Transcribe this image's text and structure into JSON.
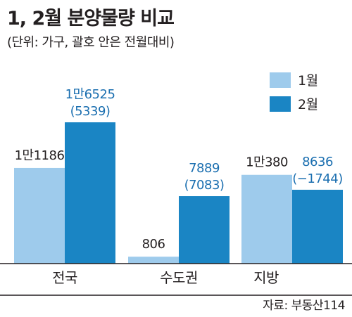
{
  "title": "1, 2월 분양물량 비교",
  "subtitle": "(단위: 가구, 괄호 안은 전월대비)",
  "source": "자료: 부동산114",
  "chart_data": {
    "type": "bar",
    "categories": [
      "전국",
      "수도권",
      "지방"
    ],
    "series": [
      {
        "name": "1월",
        "values": [
          11186,
          806,
          10380
        ],
        "labels": [
          "1만1186",
          "806",
          "1만380"
        ]
      },
      {
        "name": "2월",
        "values": [
          16525,
          7889,
          8636
        ],
        "labels": [
          "1만6525",
          "7889",
          "8636"
        ],
        "changes": [
          "(5339)",
          "(7083)",
          "(−1744)"
        ]
      }
    ],
    "legend": "top-right",
    "grid": false
  },
  "colors": {
    "jan": "#9ecbec",
    "feb": "#1a85c4",
    "feb_label": "#1b6fb0",
    "text": "#231f20",
    "baseline": "#231f20"
  }
}
